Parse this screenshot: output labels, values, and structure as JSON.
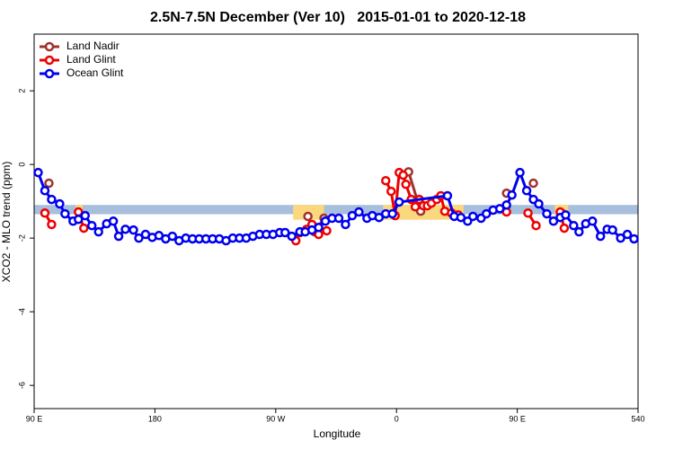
{
  "chart_data": {
    "type": "line",
    "title": "2.5N-7.5N December (Ver 10)   2015-01-01 to 2020-12-18",
    "x_label": "Longitude",
    "y_label": "XCO2 - MLO trend (ppm)",
    "xlim": [
      90,
      540
    ],
    "xticks": [
      {
        "value": 90,
        "label": "90 E"
      },
      180,
      {
        "value": 270,
        "label": "90 W"
      },
      {
        "value": 360,
        "label": "0"
      },
      {
        "value": 450,
        "label": "90 E"
      },
      540
    ],
    "ylim": [
      -6.63,
      3.54
    ],
    "yticks": [
      2,
      0,
      -2,
      -4,
      -6
    ],
    "band": {
      "ylim": [
        -1.35,
        -1.1
      ],
      "color": "#a7bedc"
    },
    "highlights": {
      "color": "#fbd77e",
      "ylim": [
        -1.5,
        -1.1
      ],
      "ranges": [
        [
          121,
          126
        ],
        [
          283,
          306
        ],
        [
          350,
          410
        ],
        [
          478,
          488
        ]
      ]
    },
    "legend": "top-left",
    "series": [
      {
        "name": "Land Nadir",
        "color": "#a0322d",
        "x": [
          101,
          null,
          294,
          299,
          306,
          null,
          369,
          378,
          null,
          442,
          null,
          462,
          null,
          483
        ],
        "values": [
          -0.51,
          null,
          -1.41,
          -1.83,
          -1.46,
          null,
          -0.2,
          -1.27,
          null,
          -0.78,
          null,
          -0.51,
          null,
          -1.32
        ]
      },
      {
        "name": "Land Glint",
        "color": "#ee0000",
        "x": [
          98,
          103,
          null,
          123,
          127,
          null,
          285,
          288,
          293,
          297,
          302,
          308,
          null,
          352,
          356,
          359,
          362,
          365,
          367,
          371,
          374,
          377,
          380,
          383,
          386,
          390,
          393,
          396,
          401,
          406,
          null,
          442,
          null,
          458,
          464,
          null,
          482,
          485
        ],
        "values": [
          -1.32,
          -1.63,
          null,
          -1.29,
          -1.73,
          null,
          -2.07,
          -1.85,
          -1.76,
          -1.63,
          -1.9,
          -1.8,
          null,
          -0.44,
          -0.73,
          -1.39,
          -0.22,
          -0.29,
          -0.54,
          -0.95,
          -1.15,
          -0.95,
          -1.12,
          -1.12,
          -1.05,
          -0.95,
          -0.85,
          -1.27,
          -1.32,
          -1.37,
          null,
          -1.29,
          null,
          -1.32,
          -1.66,
          null,
          -1.29,
          -1.73
        ]
      },
      {
        "name": "Ocean Glint",
        "color": "#0000ee",
        "x": [
          93,
          98,
          103,
          109,
          113,
          119,
          123,
          128,
          133,
          138,
          144,
          149,
          153,
          158,
          164,
          168,
          173,
          178,
          183,
          188,
          193,
          198,
          203,
          208,
          213,
          218,
          223,
          228,
          233,
          238,
          243,
          248,
          253,
          258,
          263,
          268,
          273,
          277,
          282,
          288,
          292,
          297,
          302,
          307,
          312,
          317,
          322,
          327,
          332,
          338,
          342,
          347,
          352,
          357,
          362,
          398,
          403,
          408,
          413,
          417,
          423,
          427,
          432,
          437,
          442,
          446,
          452,
          457,
          462,
          466,
          472,
          477,
          482,
          486,
          492,
          496,
          501,
          506,
          512,
          517,
          521,
          527,
          532,
          537
        ],
        "values": [
          -0.22,
          -0.71,
          -0.95,
          -1.07,
          -1.34,
          -1.54,
          -1.49,
          -1.39,
          -1.66,
          -1.83,
          -1.61,
          -1.54,
          -1.95,
          -1.76,
          -1.78,
          -2.0,
          -1.9,
          -1.98,
          -1.93,
          -2.02,
          -1.95,
          -2.07,
          -2.0,
          -2.02,
          -2.02,
          -2.02,
          -2.02,
          -2.02,
          -2.07,
          -2.0,
          -2.0,
          -2.0,
          -1.95,
          -1.9,
          -1.9,
          -1.9,
          -1.85,
          -1.85,
          -1.95,
          -1.83,
          -1.83,
          -1.78,
          -1.71,
          -1.54,
          -1.46,
          -1.46,
          -1.63,
          -1.39,
          -1.29,
          -1.46,
          -1.39,
          -1.44,
          -1.34,
          -1.34,
          -1.02,
          -0.85,
          -1.41,
          -1.44,
          -1.54,
          -1.41,
          -1.46,
          -1.34,
          -1.24,
          -1.2,
          -1.1,
          -0.83,
          -0.22,
          -0.71,
          -0.95,
          -1.07,
          -1.34,
          -1.54,
          -1.44,
          -1.37,
          -1.66,
          -1.83,
          -1.61,
          -1.54,
          -1.95,
          -1.76,
          -1.78,
          -2.0,
          -1.9,
          -2.02
        ]
      }
    ]
  }
}
